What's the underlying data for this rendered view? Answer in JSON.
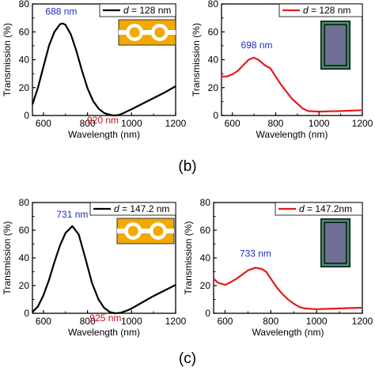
{
  "panel_labels": [
    "(b)",
    "(c)"
  ],
  "chart_data": [
    {
      "type": "line",
      "xlabel": "Wavelength (nm)",
      "ylabel": "Transmission (%)",
      "xlim": [
        550,
        1200
      ],
      "ylim": [
        0,
        80
      ],
      "xticks": [
        "600",
        "800",
        "1000",
        "1200"
      ],
      "yticks": [
        "0",
        "20",
        "40",
        "60",
        "80"
      ],
      "grid": false,
      "legend": "top-right",
      "series": [
        {
          "legend_prefix": "d",
          "legend_suffix": " = 128 nm",
          "color": "#000000",
          "x": [
            550,
            575,
            600,
            625,
            650,
            675,
            688,
            700,
            725,
            750,
            775,
            800,
            825,
            850,
            875,
            900,
            920,
            940,
            960,
            980,
            1000,
            1050,
            1100,
            1150,
            1200
          ],
          "y": [
            8,
            20,
            35,
            50,
            60,
            65.5,
            66,
            65,
            58,
            46,
            32,
            19.5,
            10.5,
            5,
            1.8,
            0.5,
            0,
            0.3,
            1.5,
            3,
            4.5,
            8.5,
            12.5,
            16.5,
            21
          ]
        }
      ],
      "annotations": [
        {
          "text": "688 nm",
          "x": 688,
          "y": 66,
          "color": "#1f2fbf"
        },
        {
          "text": "920 nm",
          "x": 920,
          "y": 0,
          "color": "#c0111f"
        }
      ],
      "inset": "gold-rings-icon"
    },
    {
      "type": "line",
      "xlabel": "Wavelength (nm)",
      "ylabel": "Transmission (%)",
      "xlim": [
        550,
        1200
      ],
      "ylim": [
        0,
        80
      ],
      "xticks": [
        "600",
        "800",
        "1000",
        "1200"
      ],
      "yticks": [
        "0",
        "20",
        "40",
        "60",
        "80"
      ],
      "grid": false,
      "legend": "top-right",
      "series": [
        {
          "legend_prefix": "d",
          "legend_suffix": " = 128 nm",
          "color": "#e31a1c",
          "x": [
            550,
            575,
            600,
            625,
            650,
            675,
            698,
            720,
            750,
            775,
            800,
            825,
            850,
            875,
            900,
            925,
            950,
            1000,
            1050,
            1100,
            1150,
            1200
          ],
          "y": [
            28,
            28,
            29.5,
            32,
            36,
            40,
            41.5,
            40,
            36,
            34,
            28,
            22,
            17,
            12,
            8.5,
            5,
            3.2,
            2.8,
            3,
            3.2,
            3.5,
            3.8
          ]
        }
      ],
      "annotations": [
        {
          "text": "698 nm",
          "x": 698,
          "y": 41.5,
          "color": "#1f2fbf"
        }
      ],
      "inset": "color-micrograph-icon"
    },
    {
      "type": "line",
      "xlabel": "Wavelength (nm)",
      "ylabel": "Transmission (%)",
      "xlim": [
        550,
        1200
      ],
      "ylim": [
        0,
        80
      ],
      "xticks": [
        "600",
        "800",
        "1000",
        "1200"
      ],
      "yticks": [
        "0",
        "20",
        "40",
        "60",
        "80"
      ],
      "grid": false,
      "legend": "top-right",
      "series": [
        {
          "legend_prefix": "d",
          "legend_suffix": " = 147.2 nm",
          "color": "#000000",
          "x": [
            550,
            575,
            600,
            625,
            650,
            675,
            700,
            731,
            760,
            790,
            820,
            850,
            875,
            900,
            925,
            950,
            980,
            1000,
            1050,
            1100,
            1150,
            1200
          ],
          "y": [
            1,
            5,
            13,
            24,
            37,
            49,
            58,
            63,
            57,
            40,
            22,
            10,
            4,
            1,
            0,
            0.4,
            2,
            3.5,
            8,
            12.5,
            16.5,
            20.5
          ]
        }
      ],
      "annotations": [
        {
          "text": "731 nm",
          "x": 731,
          "y": 63,
          "color": "#1f2fbf"
        },
        {
          "text": "925 nm",
          "x": 925,
          "y": 0,
          "color": "#c0111f"
        }
      ],
      "inset": "gold-rings-icon"
    },
    {
      "type": "line",
      "xlabel": "Wavelength (nm)",
      "ylabel": "Transmission (%)",
      "xlim": [
        550,
        1200
      ],
      "ylim": [
        0,
        80
      ],
      "xticks": [
        "600",
        "800",
        "1000",
        "1200"
      ],
      "yticks": [
        "0",
        "20",
        "40",
        "60",
        "80"
      ],
      "grid": false,
      "legend": "top-right",
      "series": [
        {
          "legend_prefix": "d",
          "legend_suffix": " = 147.2nm",
          "color": "#e31a1c",
          "x": [
            550,
            570,
            600,
            620,
            650,
            680,
            700,
            733,
            760,
            780,
            800,
            825,
            850,
            875,
            900,
            925,
            950,
            1000,
            1050,
            1100,
            1150,
            1200
          ],
          "y": [
            25,
            22,
            20.5,
            22,
            25,
            28.5,
            31,
            33,
            32,
            30,
            25,
            19,
            14,
            10,
            7,
            4.5,
            3.5,
            3,
            3.2,
            3.5,
            3.8,
            4
          ]
        }
      ],
      "annotations": [
        {
          "text": "733 nm",
          "x": 733,
          "y": 33,
          "color": "#1f2fbf"
        }
      ],
      "inset": "color-micrograph-icon"
    }
  ]
}
